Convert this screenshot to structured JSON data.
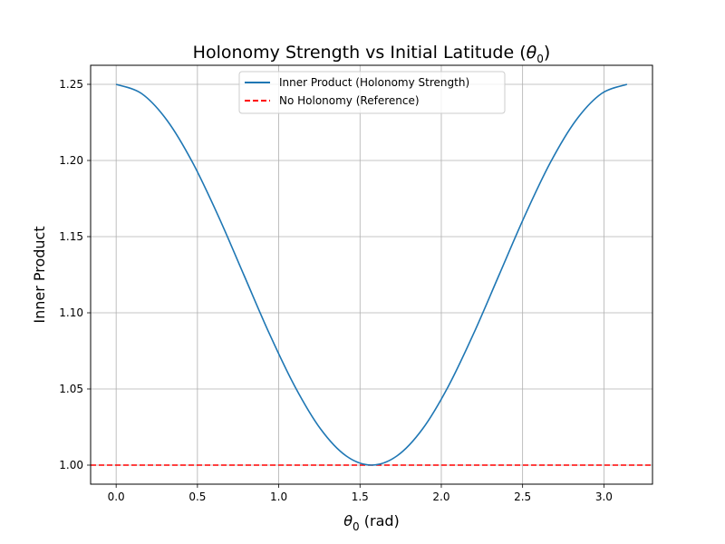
{
  "chart_data": {
    "type": "line",
    "title_main": "Holonomy Strength vs Initial Latitude (",
    "title_sym": "θ",
    "title_sub": "0",
    "title_end": ")",
    "xlabel_sym": "θ",
    "xlabel_sub": "0",
    "xlabel_end": " (rad)",
    "ylabel": "Inner Product",
    "xlim": [
      -0.157,
      3.299
    ],
    "ylim": [
      0.9875,
      1.2625
    ],
    "xticks": [
      0.0,
      0.5,
      1.0,
      1.5,
      2.0,
      2.5,
      3.0
    ],
    "xtick_labels": [
      "0.0",
      "0.5",
      "1.0",
      "1.5",
      "2.0",
      "2.5",
      "3.0"
    ],
    "yticks": [
      1.0,
      1.05,
      1.1,
      1.15,
      1.2,
      1.25
    ],
    "ytick_labels": [
      "1.00",
      "1.05",
      "1.10",
      "1.15",
      "1.20",
      "1.25"
    ],
    "grid": true,
    "legend_position": "top-center",
    "series": [
      {
        "name": "Inner Product (Holonomy Strength)",
        "color": "#1f77b4",
        "style": "solid",
        "x": [
          0.0,
          0.157,
          0.314,
          0.471,
          0.628,
          0.785,
          0.942,
          1.1,
          1.257,
          1.414,
          1.571,
          1.728,
          1.885,
          2.042,
          2.199,
          2.356,
          2.513,
          2.67,
          2.827,
          2.985,
          3.142
        ],
        "y": [
          1.25,
          1.2439,
          1.2262,
          1.1985,
          1.1636,
          1.125,
          1.0864,
          1.0515,
          1.0238,
          1.0061,
          1.0,
          1.0061,
          1.0238,
          1.0515,
          1.0864,
          1.125,
          1.1636,
          1.1985,
          1.2262,
          1.2439,
          1.25
        ]
      },
      {
        "name": "No Holonomy (Reference)",
        "color": "#ff0000",
        "style": "dashed",
        "y_constant": 1.0
      }
    ]
  }
}
